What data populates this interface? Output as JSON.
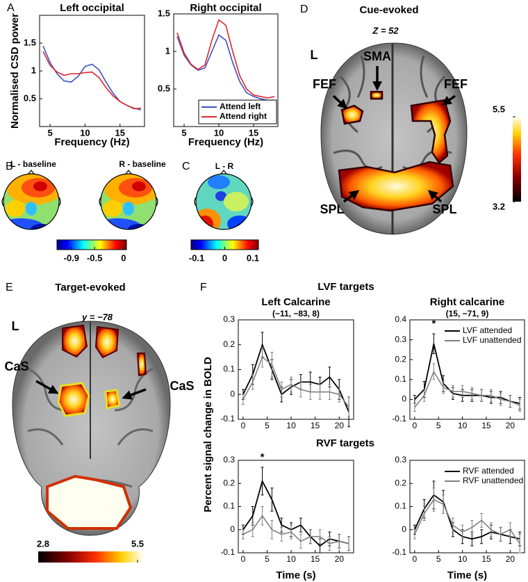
{
  "panel_labels": [
    "A",
    "B",
    "C",
    "D",
    "E",
    "F"
  ],
  "topomaps": [
    {
      "title": "L - baseline"
    },
    {
      "title": "R - baseline"
    },
    {
      "title": "L - R"
    }
  ],
  "colorbars": {
    "B": {
      "lim": [
        -1.15,
        0.05
      ],
      "ticks": [
        -0.9,
        -0.5,
        0
      ]
    },
    "C": {
      "lim": [
        -0.12,
        0.12
      ],
      "ticks": [
        -0.1,
        0,
        0.1
      ]
    },
    "D": {
      "lim": [
        3.2,
        5.5
      ],
      "ticks": [
        5.5,
        3.2
      ]
    },
    "E": {
      "lim": [
        2.8,
        5.5
      ],
      "ticks": [
        2.8,
        5.5
      ]
    }
  },
  "brain_d": {
    "title": "Cue-evoked",
    "slice": "Z = 52",
    "labels": [
      "L",
      "SMA",
      "FEF",
      "FEF",
      "SPL",
      "SPL"
    ]
  },
  "brain_e": {
    "title": "Target-evoked",
    "slice": "y = −78",
    "labels": [
      "L",
      "CaS",
      "CaS"
    ]
  },
  "panel_f": {
    "ylabel": "Percent signal change in BOLD",
    "groups": [
      "LVF targets",
      "RVF targets"
    ]
  },
  "chart_data": [
    {
      "type": "line",
      "title": "Left occipital",
      "xlabel": "Frequency (Hz)",
      "ylabel": "Normalised CSD power",
      "x": [
        4,
        5,
        6,
        7,
        8,
        9,
        10,
        11,
        12,
        13,
        14,
        15,
        16,
        17,
        18
      ],
      "xlim": [
        3.5,
        18.5
      ],
      "xticks": [
        5,
        10,
        15
      ],
      "ylim": [
        0,
        2
      ],
      "yticks": [
        0.5,
        1,
        1.5
      ],
      "series": [
        {
          "name": "Attend left",
          "color": "#3a4fc4",
          "values": [
            1.45,
            1.15,
            0.95,
            0.82,
            0.8,
            0.9,
            1.08,
            1.12,
            1.02,
            0.8,
            0.6,
            0.45,
            0.38,
            0.33,
            0.3
          ]
        },
        {
          "name": "Attend right",
          "color": "#e0262a",
          "values": [
            1.35,
            1.1,
            0.98,
            0.92,
            0.95,
            0.95,
            0.97,
            0.98,
            0.88,
            0.7,
            0.55,
            0.45,
            0.38,
            0.32,
            0.33
          ]
        }
      ]
    },
    {
      "type": "line",
      "title": "Right occipital",
      "xlabel": "Frequency (Hz)",
      "x": [
        4,
        5,
        6,
        7,
        8,
        9,
        10,
        11,
        12,
        13,
        14,
        15,
        16,
        17,
        18
      ],
      "xlim": [
        3.5,
        18.5
      ],
      "xticks": [
        5,
        10,
        15
      ],
      "ylim": [
        0,
        1.5
      ],
      "yticks": [
        0.5,
        1,
        1.5
      ],
      "legend": "lower right",
      "series": [
        {
          "name": "Attend left",
          "color": "#3a4fc4",
          "values": [
            1.2,
            0.95,
            0.82,
            0.75,
            0.78,
            1.0,
            1.22,
            1.15,
            0.85,
            0.6,
            0.45,
            0.4,
            0.37,
            0.35,
            0.35
          ]
        },
        {
          "name": "Attend right",
          "color": "#e0262a",
          "values": [
            1.25,
            0.98,
            0.83,
            0.76,
            0.82,
            1.15,
            1.42,
            1.35,
            1.0,
            0.68,
            0.5,
            0.42,
            0.4,
            0.38,
            0.4
          ]
        }
      ]
    },
    {
      "type": "line",
      "title": "Left Calcarine",
      "subtitle": "(−11, −83, 8)",
      "x": [
        0,
        2,
        4,
        6,
        8,
        10,
        12,
        14,
        16,
        18,
        20,
        22
      ],
      "xlim": [
        -1,
        23
      ],
      "xticks": [
        0,
        5,
        10,
        15,
        20
      ],
      "ylim": [
        -0.1,
        0.3
      ],
      "yticks": [
        -0.1,
        0,
        0.1,
        0.2,
        0.3
      ],
      "series": [
        {
          "name": "LVF attended",
          "color": "#000000",
          "values": [
            0,
            0.08,
            0.2,
            0.1,
            0,
            0.03,
            0.05,
            0.05,
            0.04,
            0.07,
            0.02,
            -0.07
          ],
          "errors": [
            0.02,
            0.04,
            0.05,
            0.04,
            0.03,
            0.03,
            0.03,
            0.04,
            0.03,
            0.04,
            0.04,
            0.06
          ]
        },
        {
          "name": "LVF unattended",
          "color": "#808080",
          "values": [
            -0.02,
            0.05,
            0.15,
            0.12,
            0.02,
            0.04,
            0.02,
            0.01,
            0.01,
            0.01,
            0,
            -0.05
          ],
          "errors": [
            0.02,
            0.03,
            0.04,
            0.05,
            0.03,
            0.03,
            0.03,
            0.03,
            0.03,
            0.03,
            0.03,
            0.04
          ]
        }
      ]
    },
    {
      "type": "line",
      "title": "Right calcarine",
      "subtitle": "(15, −71, 9)",
      "annotation": "*",
      "legend": "upper right",
      "x": [
        0,
        2,
        4,
        6,
        8,
        10,
        12,
        14,
        16,
        18,
        20,
        22
      ],
      "xlim": [
        -1,
        23
      ],
      "xticks": [
        0,
        5,
        10,
        15,
        20
      ],
      "ylim": [
        -0.1,
        0.4
      ],
      "yticks": [
        -0.1,
        0,
        0.1,
        0.2,
        0.3,
        0.4
      ],
      "series": [
        {
          "name": "LVF attended",
          "color": "#000000",
          "values": [
            0,
            0.05,
            0.28,
            0.08,
            0.03,
            0.02,
            0.02,
            0.02,
            0.01,
            0.01,
            -0.01,
            -0.02
          ],
          "errors": [
            0.02,
            0.04,
            0.05,
            0.04,
            0.03,
            0.03,
            0.03,
            0.03,
            0.03,
            0.03,
            0.03,
            0.03
          ]
        },
        {
          "name": "LVF unattended",
          "color": "#808080",
          "values": [
            -0.04,
            0.02,
            0.14,
            0.06,
            0.04,
            0.04,
            0.03,
            0.02,
            0.02,
            0,
            -0.01,
            -0.03
          ],
          "errors": [
            0.02,
            0.03,
            0.04,
            0.03,
            0.03,
            0.03,
            0.03,
            0.03,
            0.03,
            0.03,
            0.03,
            0.03
          ]
        }
      ]
    },
    {
      "type": "line",
      "xlabel": "Time (s)",
      "annotation": "*",
      "x": [
        0,
        2,
        4,
        6,
        8,
        10,
        12,
        14,
        16,
        18,
        20,
        22
      ],
      "xlim": [
        -1,
        23
      ],
      "xticks": [
        0,
        5,
        10,
        15,
        20
      ],
      "ylim": [
        -0.1,
        0.3
      ],
      "yticks": [
        -0.1,
        0,
        0.1,
        0.2,
        0.3
      ],
      "series": [
        {
          "name": "RVF attended",
          "color": "#000000",
          "values": [
            0,
            0.06,
            0.21,
            0.13,
            0.02,
            0,
            0.02,
            -0.03,
            -0.07,
            -0.04,
            -0.05,
            -0.06
          ],
          "errors": [
            0.02,
            0.04,
            0.06,
            0.05,
            0.03,
            0.03,
            0.03,
            0.03,
            0.03,
            0.03,
            0.03,
            0.03
          ]
        },
        {
          "name": "RVF unattended",
          "color": "#808080",
          "values": [
            -0.02,
            0,
            0.06,
            0,
            -0.02,
            -0.01,
            -0.05,
            -0.03,
            -0.03,
            -0.06,
            -0.05,
            -0.06
          ],
          "errors": [
            0.02,
            0.03,
            0.04,
            0.04,
            0.03,
            0.03,
            0.03,
            0.03,
            0.03,
            0.03,
            0.03,
            0.03
          ]
        }
      ]
    },
    {
      "type": "line",
      "xlabel": "Time (s)",
      "legend": "upper right",
      "x": [
        0,
        2,
        4,
        6,
        8,
        10,
        12,
        14,
        16,
        18,
        20,
        22
      ],
      "xlim": [
        -1,
        23
      ],
      "xticks": [
        0,
        5,
        10,
        15,
        20
      ],
      "ylim": [
        -0.1,
        0.3
      ],
      "yticks": [
        -0.1,
        0,
        0.1,
        0.2,
        0.3
      ],
      "series": [
        {
          "name": "RVF attended",
          "color": "#000000",
          "values": [
            0,
            0.09,
            0.15,
            0.12,
            0,
            -0.03,
            -0.04,
            -0.03,
            -0.01,
            -0.02,
            -0.03,
            -0.04
          ],
          "errors": [
            0.02,
            0.04,
            0.06,
            0.05,
            0.03,
            0.03,
            0.03,
            0.03,
            0.03,
            0.03,
            0.03,
            0.03
          ]
        },
        {
          "name": "RVF unattended",
          "color": "#808080",
          "values": [
            -0.02,
            0.07,
            0.13,
            0.11,
            0.02,
            -0.01,
            0.01,
            0.04,
            0,
            -0.02,
            0,
            -0.06
          ],
          "errors": [
            0.02,
            0.03,
            0.05,
            0.04,
            0.03,
            0.03,
            0.03,
            0.03,
            0.03,
            0.03,
            0.03,
            0.04
          ]
        }
      ]
    }
  ]
}
